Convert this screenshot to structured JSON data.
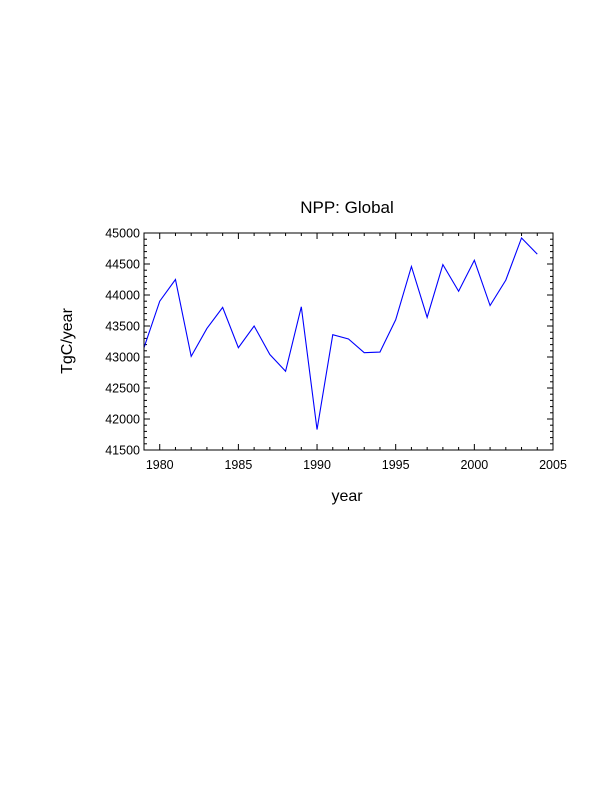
{
  "chart_data": {
    "type": "line",
    "title": "NPP: Global",
    "xlabel": "year",
    "ylabel": "TgC/year",
    "xlim": [
      1979,
      2005
    ],
    "ylim": [
      41500,
      45000
    ],
    "x_ticks": [
      1980,
      1985,
      1990,
      1995,
      2000,
      2005
    ],
    "y_ticks": [
      41500,
      42000,
      42500,
      43000,
      43500,
      44000,
      44500,
      45000
    ],
    "x_minor_step": 1,
    "y_minor_step": 100,
    "grid": false,
    "series": [
      {
        "name": "NPP",
        "color": "#0000ff",
        "x": [
          1979,
          1980,
          1981,
          1982,
          1983,
          1984,
          1985,
          1986,
          1987,
          1988,
          1989,
          1990,
          1991,
          1992,
          1993,
          1994,
          1995,
          1996,
          1997,
          1998,
          1999,
          2000,
          2001,
          2002,
          2003,
          2004
        ],
        "values": [
          43150,
          43900,
          44250,
          43010,
          43460,
          43800,
          43150,
          43500,
          43040,
          42770,
          43810,
          41830,
          43360,
          43290,
          43070,
          43080,
          43600,
          44460,
          43640,
          44490,
          44060,
          44560,
          43830,
          44240,
          44920,
          44660
        ]
      }
    ]
  }
}
